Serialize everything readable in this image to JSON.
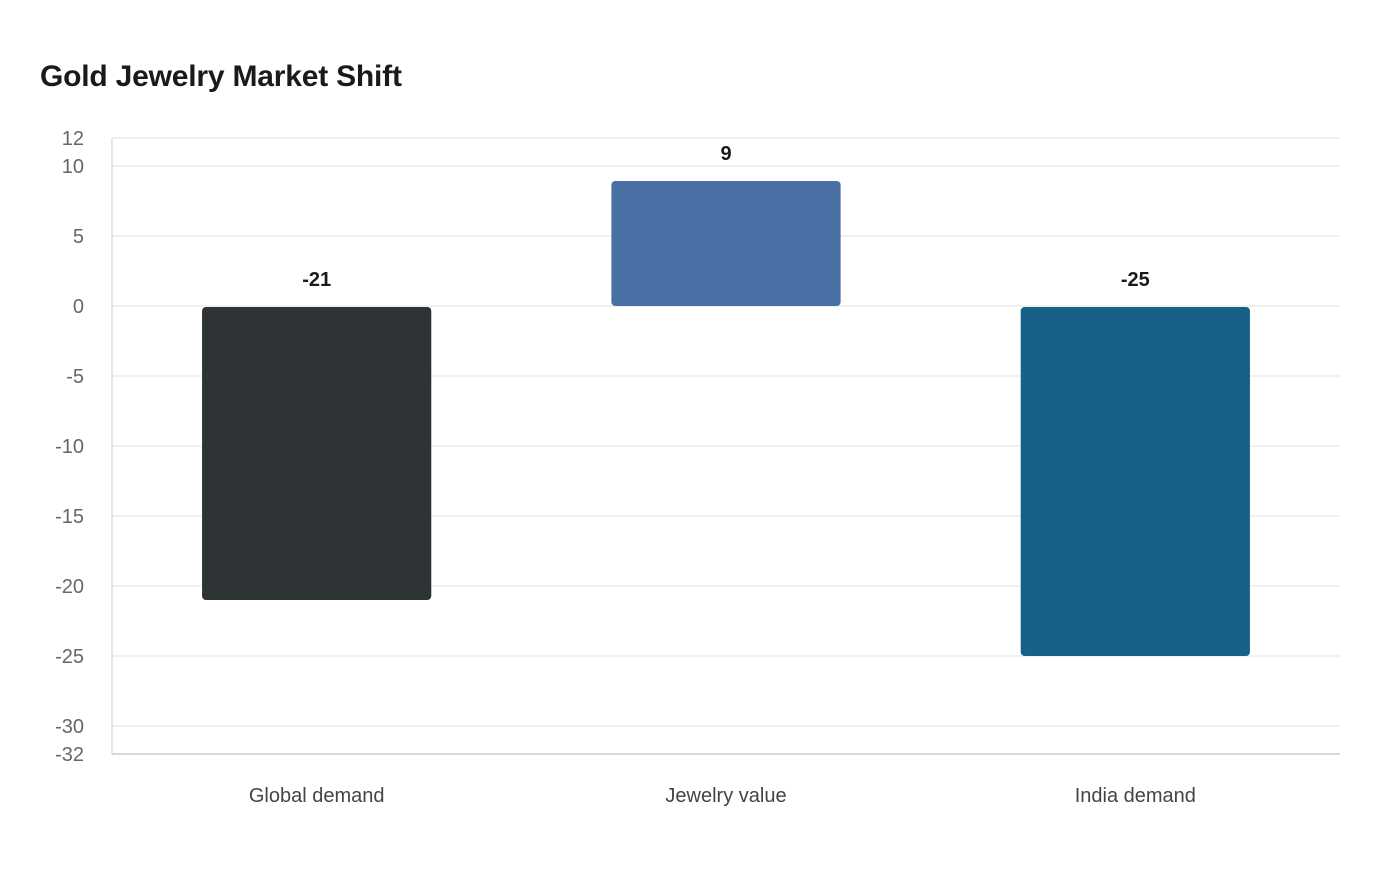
{
  "chart_data": {
    "type": "bar",
    "title": "Gold Jewelry Market Shift",
    "xlabel": "",
    "ylabel": "",
    "categories": [
      "Global demand",
      "Jewelry value",
      "India demand"
    ],
    "values": [
      -21,
      9,
      -25
    ],
    "value_labels": [
      "-21",
      "9",
      "-25"
    ],
    "colors": [
      "#2e3436",
      "#4a6fa5",
      "#176087"
    ],
    "ylim": [
      -32,
      12
    ],
    "yticks": [
      12,
      10,
      5,
      0,
      -5,
      -10,
      -15,
      -20,
      -25,
      -30,
      -32
    ],
    "grid": true,
    "legend": "none"
  }
}
